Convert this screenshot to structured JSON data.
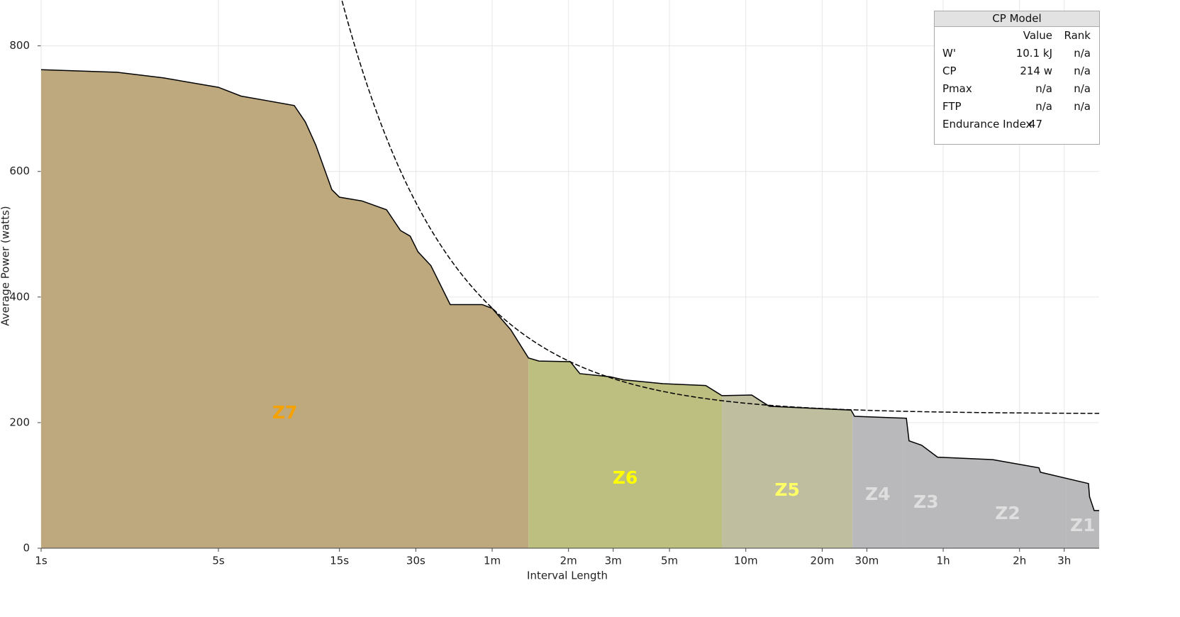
{
  "chart_data": {
    "type": "area",
    "x_label": "Interval Length",
    "y_label": "Average Power (watts)",
    "xlog": true,
    "grid": true,
    "xlim": [
      1,
      14830
    ],
    "ylim": [
      0,
      873
    ],
    "xticks": [
      {
        "value": 1,
        "label": "1s"
      },
      {
        "value": 5,
        "label": "5s"
      },
      {
        "value": 15,
        "label": "15s"
      },
      {
        "value": 30,
        "label": "30s"
      },
      {
        "value": 60,
        "label": "1m"
      },
      {
        "value": 120,
        "label": "2m"
      },
      {
        "value": 180,
        "label": "3m"
      },
      {
        "value": 300,
        "label": "5m"
      },
      {
        "value": 600,
        "label": "10m"
      },
      {
        "value": 1200,
        "label": "20m"
      },
      {
        "value": 1800,
        "label": "30m"
      },
      {
        "value": 3600,
        "label": "1h"
      },
      {
        "value": 7200,
        "label": "2h"
      },
      {
        "value": 10800,
        "label": "3h"
      }
    ],
    "yticks": [
      0,
      200,
      400,
      600,
      800
    ],
    "x": [
      1,
      1.99,
      3.03,
      5,
      6.14,
      7.95,
      9.95,
      11,
      12.1,
      14,
      15,
      18.4,
      23,
      26.1,
      28.5,
      30.6,
      34.4,
      41,
      54.8,
      60,
      71,
      83.4,
      91.8,
      122,
      133,
      175,
      199,
      283,
      417,
      483,
      633,
      697,
      743,
      1560,
      1610,
      2577,
      2640,
      2960,
      3420,
      5650,
      8590,
      8700,
      13460,
      13590,
      14170,
      14830
    ],
    "values": [
      762,
      758,
      749,
      734,
      720,
      712,
      705,
      679,
      642,
      571,
      559,
      553,
      539,
      506,
      497,
      472,
      450,
      388,
      388,
      382,
      348,
      303,
      298,
      297,
      278,
      273,
      268,
      262,
      259,
      243,
      244,
      233,
      226,
      220,
      210,
      207,
      171,
      164,
      145,
      141,
      128,
      121,
      103,
      82,
      60,
      60
    ],
    "line_color": "#000000",
    "model": {
      "cp": 214,
      "w_prime": 10100
    },
    "zones": [
      {
        "name": "Z7",
        "from": 1,
        "to": 83.4,
        "color": "#bea97e",
        "label_color": "#f5a100"
      },
      {
        "name": "Z6",
        "from": 83.4,
        "to": 483,
        "color": "#bdbf80",
        "label_color": "#ffff00"
      },
      {
        "name": "Z5",
        "from": 483,
        "to": 1580,
        "color": "#bfbf9f",
        "label_color": "#ffff66"
      },
      {
        "name": "Z4",
        "from": 1580,
        "to": 2500,
        "color": "#b9b9bb",
        "label_color": "#dedede"
      },
      {
        "name": "Z3",
        "from": 2500,
        "to": 3800,
        "color": "#b9b9bb",
        "label_color": "#dedede"
      },
      {
        "name": "Z2",
        "from": 3800,
        "to": 11000,
        "color": "#b9b9bb",
        "label_color": "#dedede"
      },
      {
        "name": "Z1",
        "from": 11000,
        "to": 14830,
        "color": "#b9b9bb",
        "label_color": "#dedede"
      }
    ]
  },
  "table": {
    "title": "CP Model",
    "columns": [
      "Value",
      "Rank"
    ],
    "rows": [
      [
        "W'",
        "10.1 kJ",
        "n/a"
      ],
      [
        "CP",
        "214 w",
        "n/a"
      ],
      [
        "Pmax",
        "n/a",
        "n/a"
      ],
      [
        "FTP",
        "n/a",
        "n/a"
      ],
      [
        "Endurance Index",
        "47",
        null
      ]
    ]
  }
}
